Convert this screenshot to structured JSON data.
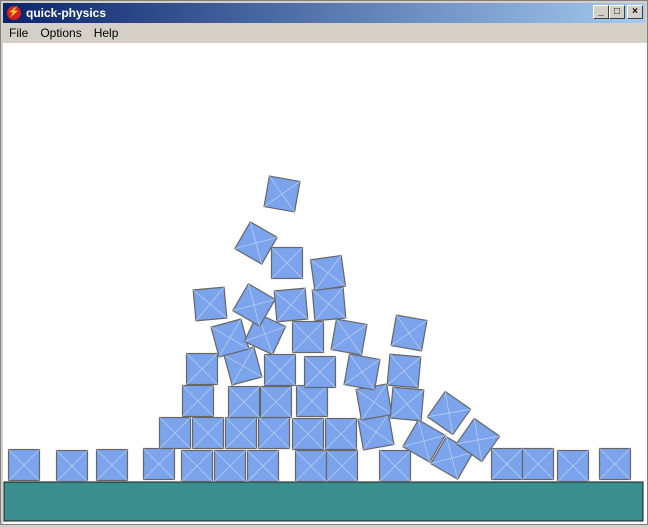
{
  "window": {
    "title": "quick-physics",
    "app_icon": "lightning-icon"
  },
  "menu": {
    "items": [
      "File",
      "Options",
      "Help"
    ]
  },
  "colors": {
    "box_fill": "#7ba4ec",
    "box_border": "#666666",
    "ground": "#3a8e8e",
    "title_start": "#0a246a",
    "title_end": "#a6caf0"
  }
}
